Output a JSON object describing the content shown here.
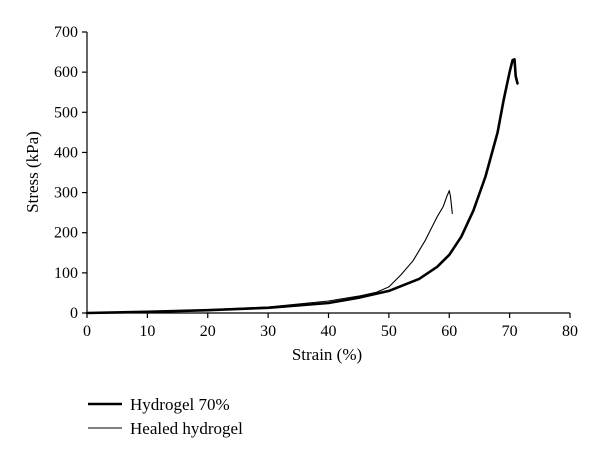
{
  "chart_data": {
    "type": "line",
    "title": "",
    "xlabel": "Strain (%)",
    "ylabel": "Stress (kPa)",
    "xlim": [
      0,
      80
    ],
    "ylim": [
      0,
      700
    ],
    "xticks": [
      "0",
      "10",
      "20",
      "30",
      "40",
      "50",
      "60",
      "70",
      "80"
    ],
    "yticks": [
      "0",
      "100",
      "200",
      "300",
      "400",
      "500",
      "600",
      "700"
    ],
    "grid": false,
    "legend_position": "bottom-left",
    "series": [
      {
        "name": "Hydrogel 70%",
        "line_style": "thick",
        "color": "#000000",
        "x": [
          0,
          10,
          20,
          30,
          40,
          45,
          50,
          55,
          58,
          60,
          62,
          64,
          66,
          68,
          69,
          70,
          70.5,
          70.8,
          71,
          71.3
        ],
        "y": [
          0,
          3,
          7,
          13,
          25,
          38,
          55,
          85,
          115,
          145,
          190,
          255,
          340,
          450,
          530,
          600,
          630,
          632,
          590,
          572
        ]
      },
      {
        "name": "Healed hydrogel",
        "line_style": "thin",
        "color": "#000000",
        "x": [
          0,
          10,
          20,
          30,
          40,
          45,
          48,
          50,
          52,
          54,
          56,
          57,
          58,
          59,
          59.6,
          60,
          60.2,
          60.5
        ],
        "y": [
          0,
          4,
          8,
          15,
          30,
          42,
          52,
          65,
          95,
          130,
          180,
          210,
          240,
          265,
          290,
          305,
          290,
          248
        ]
      }
    ]
  }
}
